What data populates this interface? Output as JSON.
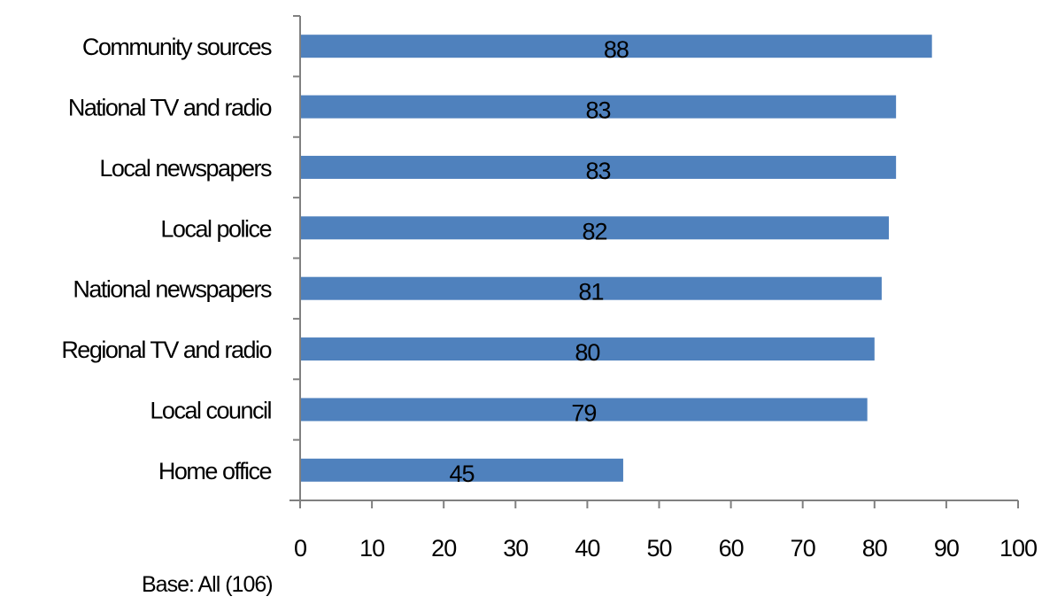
{
  "chart_data": {
    "type": "bar",
    "orientation": "horizontal",
    "categories": [
      "Community sources",
      "National TV and radio",
      "Local newspapers",
      "Local police",
      "National newspapers",
      "Regional TV and radio",
      "Local council",
      "Home office"
    ],
    "values": [
      88,
      83,
      83,
      82,
      81,
      80,
      79,
      45
    ],
    "xlim": [
      0,
      100
    ],
    "xticks": [
      0,
      10,
      20,
      30,
      40,
      50,
      60,
      70,
      80,
      90,
      100
    ],
    "bar_color": "#4f81bd",
    "data_labels": true,
    "grid": false,
    "legend": "none",
    "title": "",
    "xlabel": "",
    "ylabel": ""
  },
  "footnote": "Base: All (106)"
}
